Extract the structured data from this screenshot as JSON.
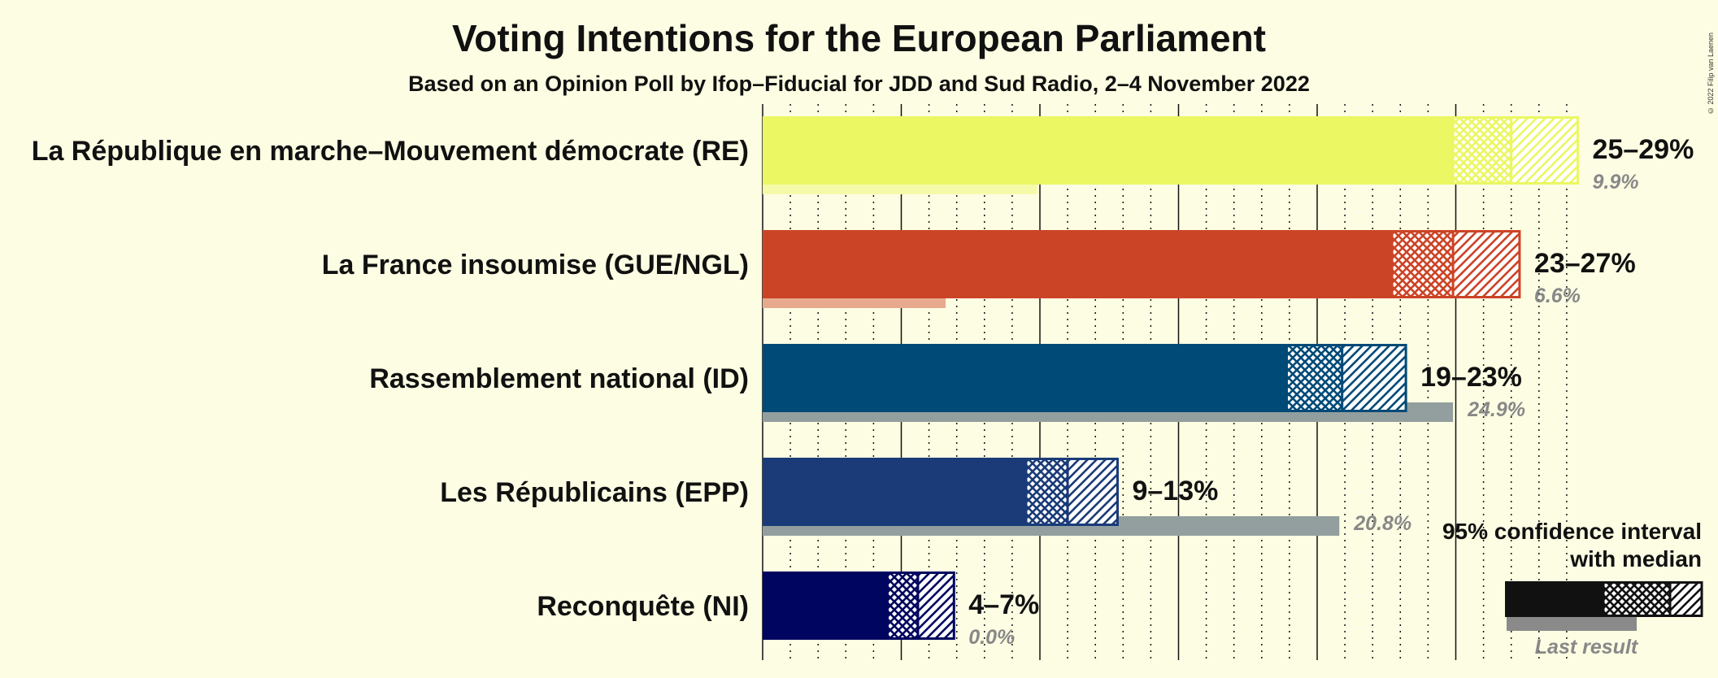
{
  "title": "Voting Intentions for the European Parliament",
  "subtitle": "Based on an Opinion Poll by Ifop–Fiducial for JDD and Sud Radio, 2–4 November 2022",
  "copyright": "© 2022 Filip van Laenen",
  "legend": {
    "line1": "95% confidence interval",
    "line2": "with median",
    "last_result": "Last result"
  },
  "chart_data": {
    "type": "bar",
    "orientation": "horizontal",
    "title": "Voting Intentions for the European Parliament",
    "subtitle": "Based on an Opinion Poll by Ifop–Fiducial for JDD and Sud Radio, 2–4 November 2022",
    "xlim": [
      0,
      30
    ],
    "grid": true,
    "legend_position": "bottom-right",
    "parties": [
      {
        "name": "La République en marche–Mouvement démocrate (RE)",
        "color": "#ebf763",
        "ci_low": 24.9,
        "median": 27.0,
        "ci_high": 29.4,
        "range_label": "25–29%",
        "last_result": 9.9,
        "last_label": "9.9%"
      },
      {
        "name": "La France insoumise (GUE/NGL)",
        "color": "#cc4426",
        "ci_low": 22.7,
        "median": 24.9,
        "ci_high": 27.3,
        "range_label": "23–27%",
        "last_result": 6.6,
        "last_label": "6.6%"
      },
      {
        "name": "Rassemblement national (ID)",
        "color": "#004a77",
        "ci_low": 18.9,
        "median": 20.9,
        "ci_high": 23.2,
        "range_label": "19–23%",
        "last_result": 24.9,
        "last_label": "24.9%"
      },
      {
        "name": "Les Républicains (EPP)",
        "color": "#1a3b78",
        "ci_low": 9.5,
        "median": 11.0,
        "ci_high": 12.8,
        "range_label": "9–13%",
        "last_result": 20.8,
        "last_label": "20.8%"
      },
      {
        "name": "Reconquête (NI)",
        "color": "#00065f",
        "ci_low": 4.5,
        "median": 5.6,
        "ci_high": 6.9,
        "range_label": "4–7%",
        "last_result": 0.0,
        "last_label": "0.0%"
      }
    ]
  }
}
